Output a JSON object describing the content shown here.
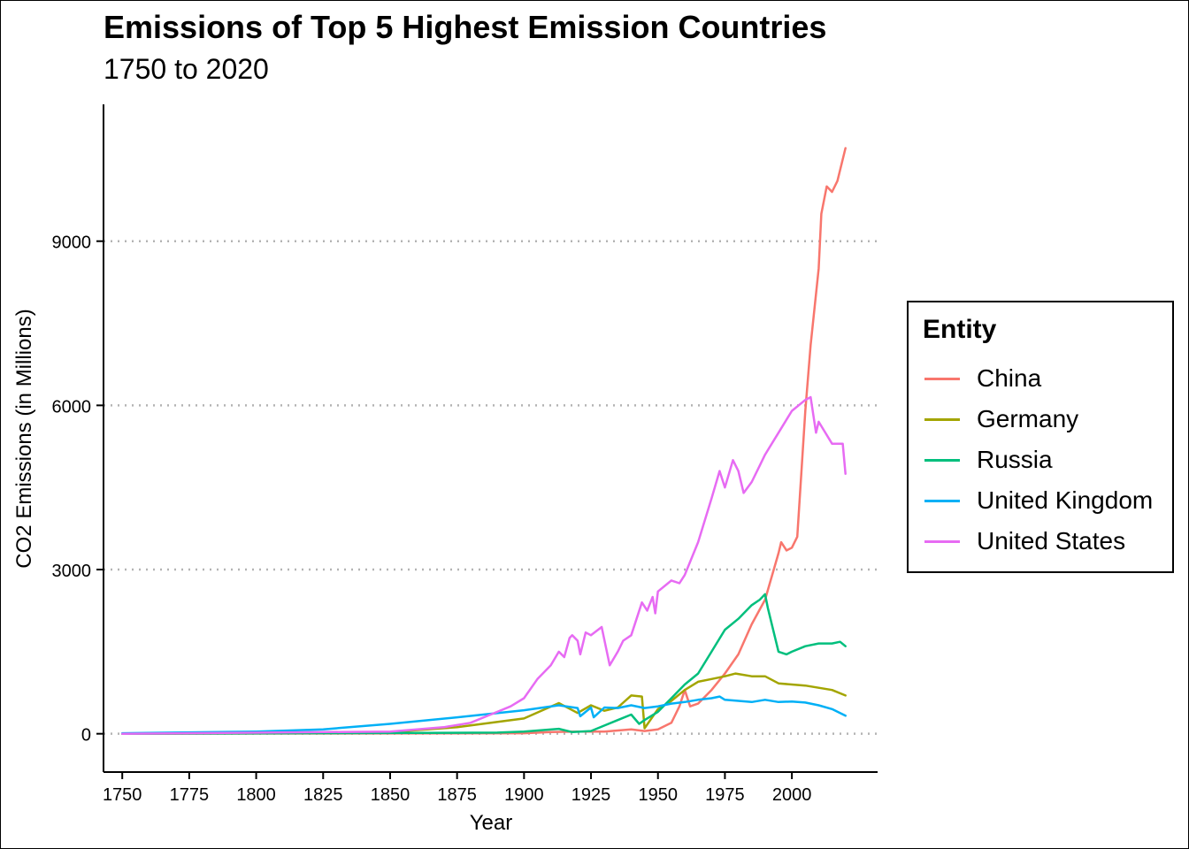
{
  "chart_data": {
    "type": "line",
    "title": "Emissions of Top 5 Highest Emission Countries",
    "subtitle": "1750 to 2020",
    "xlabel": "Year",
    "ylabel": "CO2 Emissions (in Millions)",
    "xlim": [
      1743,
      2032
    ],
    "ylim": [
      -700,
      11500
    ],
    "xticks": [
      1750,
      1775,
      1800,
      1825,
      1850,
      1875,
      1900,
      1925,
      1950,
      1975,
      2000
    ],
    "yticks": [
      0,
      3000,
      6000,
      9000
    ],
    "grid": "horizontal dotted at y ticks",
    "legend": {
      "title": "Entity",
      "position": "right"
    },
    "series": [
      {
        "name": "China",
        "color": "#F8766D",
        "x": [
          1750,
          1900,
          1910,
          1920,
          1930,
          1940,
          1945,
          1950,
          1955,
          1958,
          1960,
          1962,
          1965,
          1970,
          1975,
          1980,
          1985,
          1990,
          1995,
          1996,
          1998,
          2000,
          2002,
          2005,
          2007,
          2010,
          2011,
          2013,
          2015,
          2017,
          2020
        ],
        "y": [
          0,
          10,
          30,
          40,
          40,
          80,
          50,
          80,
          200,
          500,
          800,
          500,
          550,
          800,
          1100,
          1450,
          2000,
          2450,
          3300,
          3500,
          3350,
          3400,
          3600,
          5900,
          7100,
          8500,
          9500,
          10000,
          9900,
          10100,
          10700
        ]
      },
      {
        "name": "Germany",
        "color": "#A3A500",
        "x": [
          1750,
          1850,
          1875,
          1900,
          1913,
          1920,
          1925,
          1930,
          1935,
          1940,
          1944,
          1945,
          1950,
          1955,
          1960,
          1965,
          1970,
          1975,
          1979,
          1985,
          1990,
          1995,
          2000,
          2005,
          2010,
          2015,
          2020
        ],
        "y": [
          0,
          30,
          120,
          280,
          560,
          380,
          520,
          420,
          480,
          700,
          680,
          100,
          450,
          600,
          800,
          950,
          1000,
          1050,
          1100,
          1050,
          1050,
          920,
          900,
          880,
          840,
          800,
          700
        ]
      },
      {
        "name": "Russia",
        "color": "#00BF7D",
        "x": [
          1750,
          1890,
          1900,
          1913,
          1918,
          1925,
          1930,
          1935,
          1940,
          1943,
          1945,
          1950,
          1955,
          1960,
          1965,
          1970,
          1975,
          1980,
          1985,
          1988,
          1990,
          1991,
          1995,
          1998,
          2000,
          2005,
          2010,
          2015,
          2018,
          2020
        ],
        "y": [
          0,
          20,
          40,
          90,
          30,
          50,
          150,
          250,
          350,
          180,
          250,
          400,
          650,
          900,
          1100,
          1500,
          1900,
          2100,
          2350,
          2450,
          2550,
          2300,
          1500,
          1450,
          1500,
          1600,
          1650,
          1650,
          1680,
          1600
        ]
      },
      {
        "name": "United Kingdom",
        "color": "#00B0F6",
        "x": [
          1750,
          1800,
          1825,
          1850,
          1875,
          1900,
          1913,
          1920,
          1921,
          1925,
          1926,
          1930,
          1935,
          1940,
          1945,
          1950,
          1955,
          1960,
          1965,
          1970,
          1973,
          1975,
          1980,
          1985,
          1990,
          1995,
          2000,
          2005,
          2010,
          2015,
          2020
        ],
        "y": [
          10,
          40,
          80,
          180,
          300,
          430,
          520,
          470,
          320,
          480,
          300,
          480,
          470,
          520,
          470,
          500,
          550,
          580,
          620,
          650,
          680,
          620,
          600,
          580,
          620,
          580,
          590,
          570,
          520,
          450,
          330
        ]
      },
      {
        "name": "United States",
        "color": "#E76BF3",
        "x": [
          1750,
          1850,
          1870,
          1880,
          1890,
          1895,
          1900,
          1905,
          1910,
          1913,
          1915,
          1917,
          1918,
          1920,
          1921,
          1923,
          1925,
          1929,
          1932,
          1935,
          1937,
          1940,
          1944,
          1946,
          1948,
          1949,
          1950,
          1955,
          1958,
          1960,
          1965,
          1970,
          1973,
          1975,
          1978,
          1980,
          1982,
          1985,
          1988,
          1990,
          1995,
          2000,
          2005,
          2007,
          2009,
          2010,
          2015,
          2019,
          2020
        ],
        "y": [
          0,
          40,
          120,
          200,
          400,
          500,
          650,
          1000,
          1250,
          1500,
          1400,
          1750,
          1800,
          1700,
          1450,
          1850,
          1800,
          1950,
          1250,
          1500,
          1700,
          1800,
          2400,
          2250,
          2500,
          2200,
          2600,
          2800,
          2750,
          2900,
          3500,
          4300,
          4800,
          4500,
          5000,
          4800,
          4400,
          4600,
          4900,
          5100,
          5500,
          5900,
          6100,
          6150,
          5500,
          5700,
          5300,
          5300,
          4750
        ]
      }
    ]
  }
}
